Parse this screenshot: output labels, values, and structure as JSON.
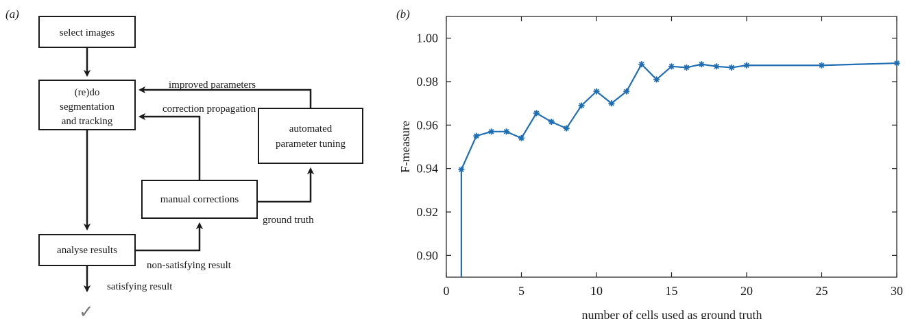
{
  "flowchart": {
    "panel_label": "(a)",
    "boxes": {
      "select": "select images",
      "segmentation": [
        "(re)do",
        "segmentation",
        "and tracking"
      ],
      "analyse": "analyse results",
      "manual": "manual corrections",
      "tuning": [
        "automated",
        "parameter tuning"
      ]
    },
    "labels": {
      "improved": "improved parameters",
      "propagation": "correction propagation",
      "ground_truth": "ground truth",
      "non_satisfying": "non-satisfying result",
      "satisfying": "satisfying result"
    },
    "check_icon": "checkmark-icon"
  },
  "chart_data": {
    "panel_label": "(b)",
    "type": "line",
    "title": "",
    "xlabel": "number of cells used as ground truth",
    "ylabel": "F-measure",
    "xlim": [
      0,
      30
    ],
    "ylim": [
      0.89,
      1.01
    ],
    "xticks": [
      0,
      5,
      10,
      15,
      20,
      25,
      30
    ],
    "yticks": [
      0.9,
      0.92,
      0.94,
      0.96,
      0.98,
      1.0
    ],
    "ytick_labels": [
      "0.90",
      "0.92",
      "0.94",
      "0.96",
      "0.98",
      "1.00"
    ],
    "grid": false,
    "color": "#1f6eb4",
    "marker": "asterisk",
    "start_value": 0.89,
    "series": [
      {
        "x": [
          1,
          2,
          3,
          4,
          5,
          6,
          7,
          8,
          9,
          10,
          11,
          12,
          13,
          14,
          15,
          16,
          17,
          18,
          19,
          20,
          25,
          30
        ],
        "values": [
          0.9395,
          0.955,
          0.957,
          0.957,
          0.954,
          0.9655,
          0.9615,
          0.9585,
          0.969,
          0.9755,
          0.97,
          0.9755,
          0.988,
          0.981,
          0.987,
          0.9865,
          0.988,
          0.987,
          0.9865,
          0.9875,
          0.9875,
          0.9885
        ]
      }
    ]
  }
}
